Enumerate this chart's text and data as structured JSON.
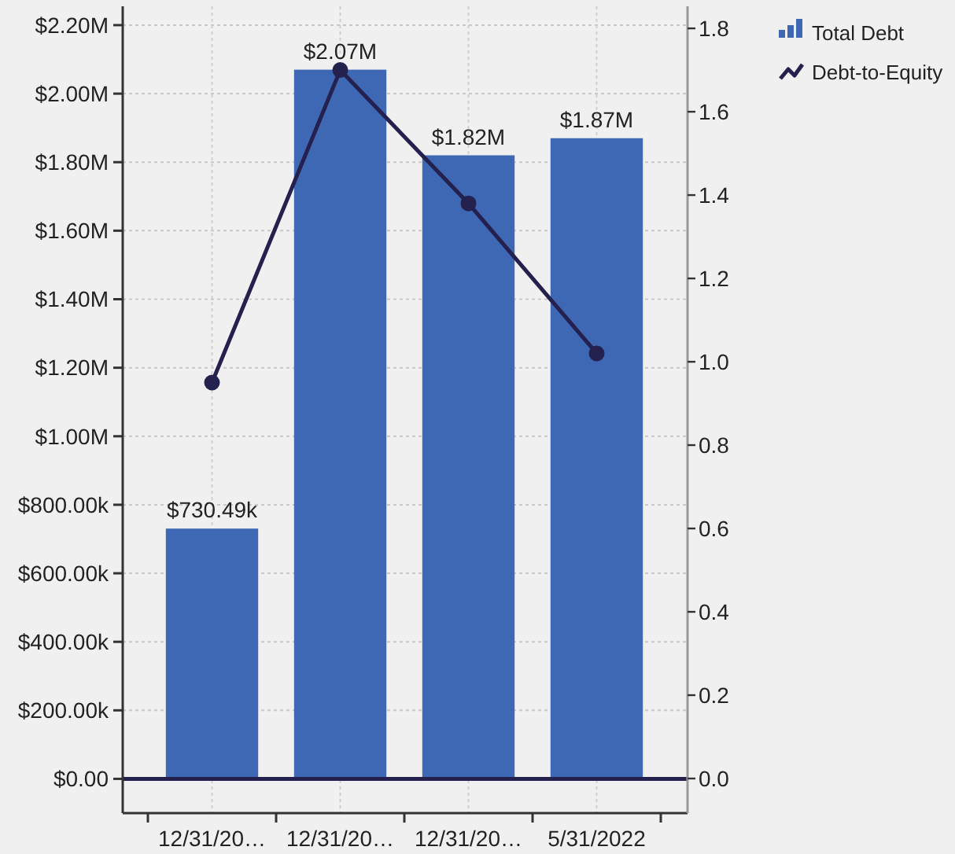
{
  "chart_data": {
    "type": "bar",
    "categories": [
      "12/31/20…",
      "12/31/20…",
      "12/31/20…",
      "5/31/2022"
    ],
    "series": [
      {
        "name": "Total Debt",
        "color": "#3e68b3",
        "values": [
          730490,
          2070000,
          1820000,
          1870000
        ],
        "value_labels": [
          "$730.49k",
          "$2.07M",
          "$1.82M",
          "$1.87M"
        ]
      },
      {
        "name": "Debt-to-Equity",
        "type": "line",
        "axis": "y2",
        "color": "#24214f",
        "values": [
          0.95,
          1.7,
          1.38,
          1.02
        ]
      }
    ],
    "ylim": [
      -100000,
      2255000
    ],
    "yticks": [
      {
        "value": 0,
        "label": "$0.00"
      },
      {
        "value": 200000,
        "label": "$200.00k"
      },
      {
        "value": 400000,
        "label": "$400.00k"
      },
      {
        "value": 600000,
        "label": "$600.00k"
      },
      {
        "value": 800000,
        "label": "$800.00k"
      },
      {
        "value": 1000000,
        "label": "$1.00M"
      },
      {
        "value": 1200000,
        "label": "$1.20M"
      },
      {
        "value": 1400000,
        "label": "$1.40M"
      },
      {
        "value": 1600000,
        "label": "$1.60M"
      },
      {
        "value": 1800000,
        "label": "$1.80M"
      },
      {
        "value": 2000000,
        "label": "$2.00M"
      },
      {
        "value": 2200000,
        "label": "$2.20M"
      }
    ],
    "y2lim": [
      -0.083,
      1.853
    ],
    "y2ticks": [
      {
        "value": 0,
        "label": "0.0"
      },
      0.2,
      0.4,
      0.6,
      0.8,
      {
        "value": 1,
        "label": "1.0"
      },
      1.2,
      1.4,
      1.6,
      1.8
    ],
    "grid": true,
    "legend": "top right",
    "marker": "circle",
    "line_style": "solid",
    "ref_lines": [
      {
        "axis": "y",
        "value": 0,
        "color": "#24214f"
      }
    ]
  }
}
